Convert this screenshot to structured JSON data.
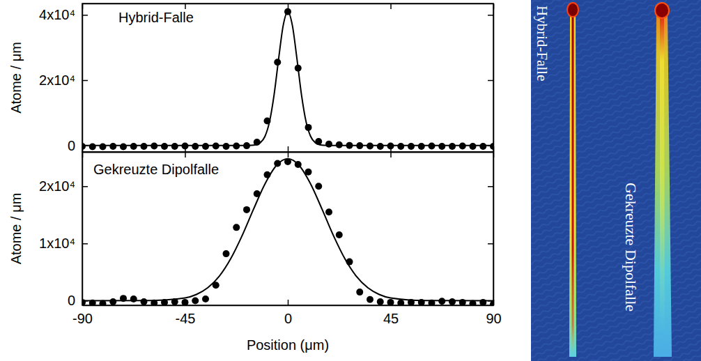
{
  "chart_data": [
    {
      "type": "scatter",
      "title": "Hybrid-Falle",
      "y_label": "Atome / μm",
      "xlim": [
        -90,
        90
      ],
      "xticks": [
        -90,
        -45,
        0,
        45,
        90
      ],
      "ylim": [
        -2000,
        43500
      ],
      "yticks": [
        0,
        {
          "value": 20000,
          "label": "2x10⁴"
        },
        {
          "value": 40000,
          "label": "4x10⁴"
        }
      ],
      "tick_labels": "y",
      "series": [
        {
          "type": "scatter",
          "marker": "circle",
          "color": "#000000",
          "x": [
            -90,
            -85.5,
            -81,
            -76.5,
            -72,
            -67.5,
            -63,
            -58.5,
            -54,
            -49.5,
            -45,
            -40.5,
            -36,
            -31.5,
            -27,
            -22.5,
            -18,
            -13.5,
            -9,
            -4.5,
            0,
            4.5,
            9,
            13.5,
            18,
            22.5,
            27,
            31.5,
            36,
            40.5,
            45,
            49.5,
            54,
            58.5,
            63,
            67.5,
            72,
            76.5,
            81,
            85.5,
            90
          ],
          "values": [
            -300,
            -400,
            -400,
            -300,
            -400,
            -300,
            -300,
            -200,
            -300,
            -300,
            -200,
            -300,
            -300,
            -200,
            -300,
            -200,
            -100,
            1000,
            7500,
            25500,
            41000,
            23700,
            5500,
            1200,
            400,
            200,
            0,
            -100,
            -200,
            -300,
            -200,
            -300,
            -300,
            -300,
            -200,
            -300,
            -300,
            -200,
            -300,
            -300,
            -300
          ]
        },
        {
          "type": "line",
          "line_style": "solid",
          "color": "#000000",
          "x": [
            -90,
            -45,
            -20,
            -16,
            -14,
            -12,
            -10,
            -8,
            -6,
            -4,
            -2,
            0,
            2,
            4,
            6,
            8,
            10,
            12,
            14,
            16,
            20,
            45,
            90
          ],
          "values": [
            0,
            0,
            0,
            40,
            200,
            840,
            2750,
            7260,
            15500,
            26600,
            36800,
            41000,
            36800,
            26600,
            15500,
            7260,
            2750,
            840,
            200,
            40,
            0,
            0,
            0
          ]
        }
      ]
    },
    {
      "type": "scatter",
      "title": "Gekreuzte Dipolfalle",
      "y_label": "Atome / μm",
      "x_label": "Position (μm)",
      "xlim": [
        -90,
        90
      ],
      "xticks": [
        -90,
        -45,
        0,
        45,
        90
      ],
      "ylim": [
        -800,
        26000
      ],
      "yticks": [
        0,
        {
          "value": 10000,
          "label": "1x10⁴"
        },
        {
          "value": 20000,
          "label": "2x10⁴"
        }
      ],
      "series": [
        {
          "type": "scatter",
          "marker": "circle",
          "color": "#000000",
          "x": [
            -90,
            -85.5,
            -81,
            -76.5,
            -72,
            -67.5,
            -63,
            -58.5,
            -54,
            -49.5,
            -45,
            -40.5,
            -36,
            -31.5,
            -27,
            -22.5,
            -18,
            -13.5,
            -9,
            -4.5,
            0,
            4.5,
            9,
            13.5,
            18,
            22.5,
            27,
            31.5,
            36,
            40.5,
            45,
            49.5,
            54,
            58.5,
            63,
            67.5,
            72,
            76.5,
            81,
            85.5,
            90
          ],
          "values": [
            -300,
            -400,
            -500,
            -200,
            400,
            300,
            -200,
            -400,
            -300,
            -200,
            -300,
            0,
            300,
            2700,
            8200,
            12800,
            15900,
            18700,
            22000,
            24000,
            24300,
            23800,
            22500,
            20000,
            15500,
            11500,
            6800,
            1500,
            200,
            -200,
            -300,
            -400,
            -300,
            -300,
            -400,
            -100,
            -200,
            -300,
            -500,
            -300,
            -600
          ]
        },
        {
          "type": "line",
          "line_style": "solid",
          "color": "#000000",
          "x": [
            -90,
            -60,
            -45,
            -40,
            -35,
            -30,
            -25,
            -20,
            -15,
            -10,
            -5,
            0,
            5,
            10,
            15,
            20,
            25,
            30,
            35,
            40,
            45,
            60,
            90
          ],
          "values": [
            0,
            20,
            480,
            1090,
            2270,
            4270,
            7320,
            11360,
            15990,
            20400,
            23620,
            24800,
            23620,
            20400,
            15990,
            11360,
            7320,
            4270,
            2270,
            1090,
            480,
            20,
            0
          ]
        }
      ]
    }
  ],
  "image": {
    "labels": [
      "Hybrid-Falle",
      "Gekreuzte Dipolfalle"
    ]
  }
}
